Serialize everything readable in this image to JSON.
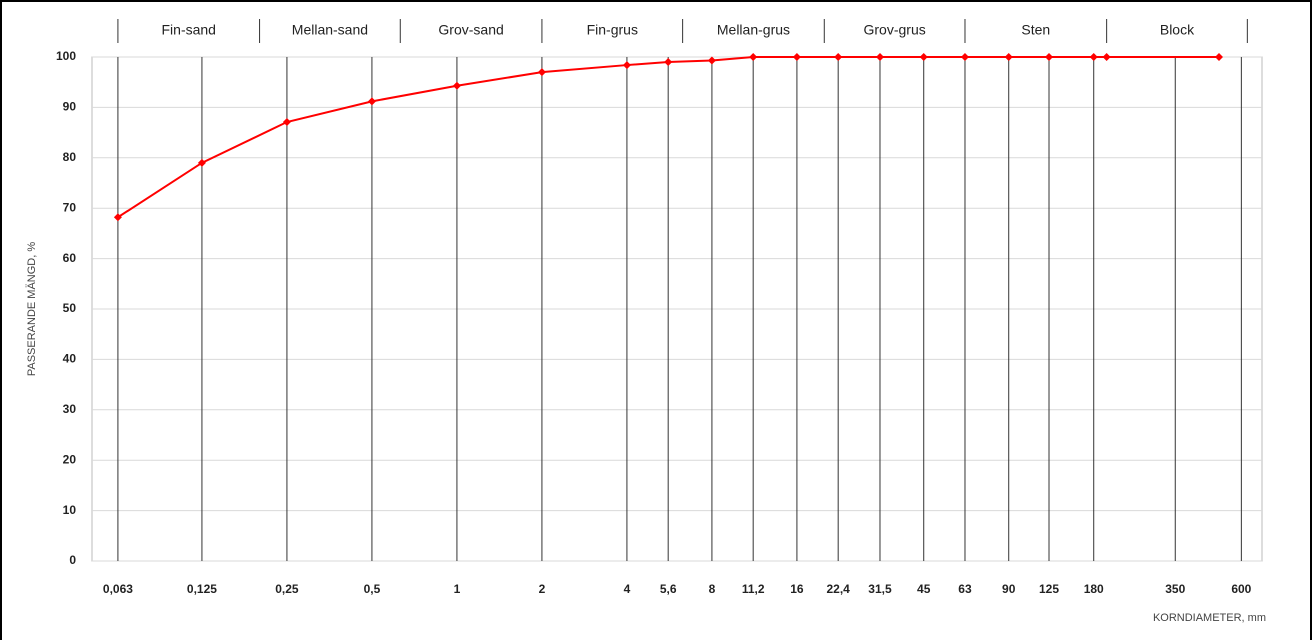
{
  "chart_data": {
    "type": "line",
    "log_x": true,
    "grid": true,
    "y_label": "PASSERANDE MÄNGD, %",
    "x_label": "KORNDIAMETER, mm",
    "fractions": [
      "Fin-sand",
      "Mellan-sand",
      "Grov-sand",
      "Fin-grus",
      "Mellan-grus",
      "Grov-grus",
      "Sten",
      "Block"
    ],
    "fraction_bounds": [
      0.063,
      0.2,
      0.63,
      2,
      6.3,
      20,
      63,
      200,
      630
    ],
    "xlim": [
      0.051,
      710
    ],
    "ylim": [
      0,
      100
    ],
    "yticks": [
      0,
      10,
      20,
      30,
      40,
      50,
      60,
      70,
      80,
      90,
      100
    ],
    "xticks": [
      {
        "value": 0.063,
        "label": "0,063"
      },
      {
        "value": 0.125,
        "label": "0,125"
      },
      {
        "value": 0.25,
        "label": "0,25"
      },
      {
        "value": 0.5,
        "label": "0,5"
      },
      1,
      2,
      4,
      {
        "value": 5.6,
        "label": "5,6"
      },
      8,
      {
        "value": 11.2,
        "label": "11,2"
      },
      16,
      {
        "value": 22.4,
        "label": "22,4"
      },
      {
        "value": 31.5,
        "label": "31,5"
      },
      45,
      63,
      90,
      125,
      180,
      350,
      600
    ],
    "series": [
      {
        "color": "#ff0000",
        "x": [
          0.063,
          0.125,
          0.25,
          0.5,
          1,
          2,
          4,
          5.6,
          8,
          11.2,
          16,
          22.4,
          31.5,
          45,
          63,
          90,
          125,
          180,
          200,
          500
        ],
        "values": [
          68.2,
          79,
          87.1,
          91.2,
          94.3,
          97,
          98.4,
          99,
          99.3,
          100,
          100,
          100,
          100,
          100,
          100,
          100,
          100,
          100,
          100,
          100
        ]
      }
    ]
  }
}
